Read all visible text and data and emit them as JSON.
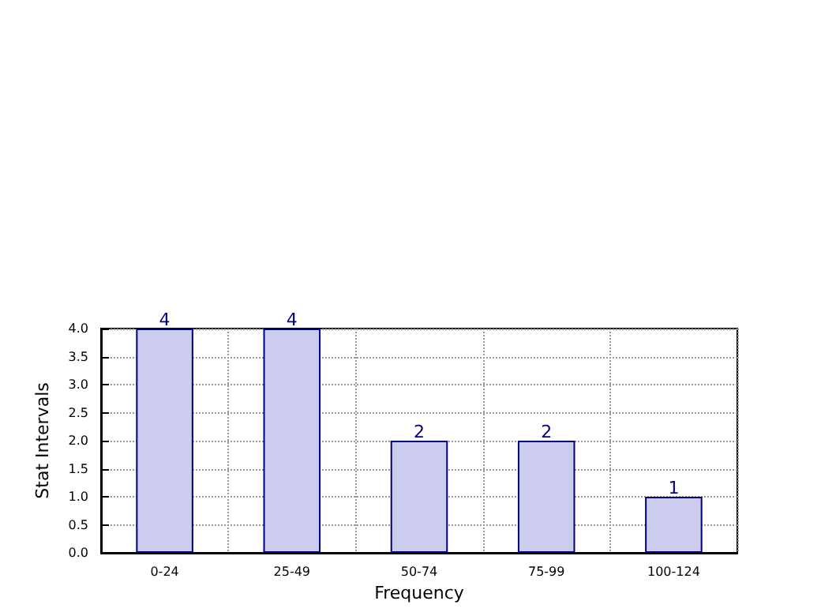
{
  "chart_data": {
    "type": "bar",
    "xlabel": "Frequency",
    "ylabel": "Stat Intervals",
    "categories": [
      "0-24",
      "25-49",
      "50-74",
      "75-99",
      "100-124"
    ],
    "values": [
      4,
      4,
      2,
      2,
      1
    ],
    "color": "#ccccee",
    "ylim": [
      0,
      4
    ],
    "yticks": [
      {
        "value": 0,
        "label": "0.0"
      },
      {
        "value": 0.5,
        "label": "0.5"
      },
      {
        "value": 1,
        "label": "1.0"
      },
      {
        "value": 1.5,
        "label": "1.5"
      },
      {
        "value": 2,
        "label": "2.0"
      },
      {
        "value": 2.5,
        "label": "2.5"
      },
      {
        "value": 3,
        "label": "3.0"
      },
      {
        "value": 3.5,
        "label": "3.5"
      },
      {
        "value": 4,
        "label": "4.0"
      }
    ],
    "grid": true,
    "data_labels": true
  }
}
